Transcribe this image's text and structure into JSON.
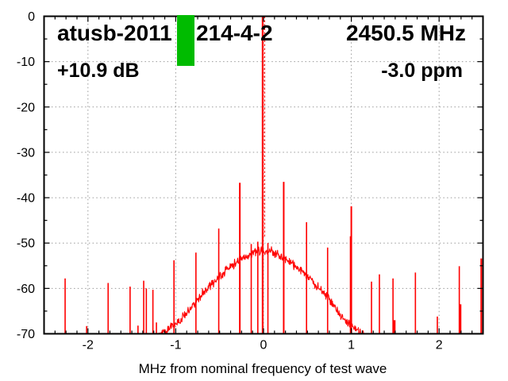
{
  "header": {
    "test_name_left": "atusb-2011",
    "test_name_right": "214-4-2",
    "frequency": "2450.5 MHz",
    "margin": "+10.9 dB",
    "offset_ppm": "-3.0 ppm"
  },
  "colors": {
    "trace": "#ff0000",
    "grid": "#9a9a9a",
    "axis": "#000000",
    "pass_bar": "#00bb00"
  },
  "chart_data": {
    "type": "line",
    "xlabel": "MHz from nominal frequency of test wave",
    "ylabel": "",
    "xlim": [
      -2.5,
      2.5
    ],
    "ylim": [
      -70,
      0
    ],
    "xticks": [
      -2,
      -1,
      0,
      1,
      2
    ],
    "yticks": [
      0,
      -10,
      -20,
      -30,
      -40,
      -50,
      -60,
      -70
    ],
    "x_minor_step": 0.125,
    "y_minor_step": 5,
    "grid": "dotted",
    "carrier_spike": {
      "f_mhz": 0.0,
      "peak_db": 0.0
    },
    "pass_bar": {
      "f_start": -1.0,
      "f_end": -0.8,
      "db_top": 0,
      "db_bottom": -10.9
    },
    "spurs": [
      {
        "f": -2.26,
        "db": -57.8
      },
      {
        "f": -2.015,
        "db": -68.3
      },
      {
        "f": -1.77,
        "db": -58.8
      },
      {
        "f": -1.52,
        "db": -59.6
      },
      {
        "f": -1.43,
        "db": -68.2
      },
      {
        "f": -1.365,
        "db": -58.3
      },
      {
        "f": -1.335,
        "db": -60.0
      },
      {
        "f": -1.26,
        "db": -60.3
      },
      {
        "f": -1.22,
        "db": -67.5
      },
      {
        "f": -1.02,
        "db": -53.8
      },
      {
        "f": -0.77,
        "db": -52.1
      },
      {
        "f": -0.51,
        "db": -46.8
      },
      {
        "f": -0.27,
        "db": -36.7,
        "w": 2
      },
      {
        "f": -0.14,
        "db": -50.2
      },
      {
        "f": -0.065,
        "db": -49.7
      },
      {
        "f": 0.05,
        "db": -50.0
      },
      {
        "f": 0.23,
        "db": -36.5,
        "w": 2
      },
      {
        "f": 0.49,
        "db": -45.4
      },
      {
        "f": 0.73,
        "db": -51.0
      },
      {
        "f": 0.99,
        "db": -48.5
      },
      {
        "f": 1.0,
        "db": -41.9,
        "w": 2
      },
      {
        "f": 1.23,
        "db": -58.5
      },
      {
        "f": 1.32,
        "db": -56.9
      },
      {
        "f": 1.475,
        "db": -57.8
      },
      {
        "f": 1.49,
        "db": -67.0,
        "w": 3
      },
      {
        "f": 1.73,
        "db": -56.5
      },
      {
        "f": 1.98,
        "db": -66.2
      },
      {
        "f": 2.23,
        "db": -55.1
      },
      {
        "f": 2.24,
        "db": -63.5,
        "w": 3
      },
      {
        "f": 2.48,
        "db": -53.4,
        "w": 2
      }
    ],
    "noise_hump": [
      [
        -1.33,
        -72.5
      ],
      [
        -1.2,
        -70.5
      ],
      [
        -1.1,
        -69.0
      ],
      [
        -1.0,
        -67.8
      ],
      [
        -0.9,
        -66.0
      ],
      [
        -0.8,
        -63.6
      ],
      [
        -0.7,
        -61.2
      ],
      [
        -0.6,
        -59.2
      ],
      [
        -0.5,
        -57.4
      ],
      [
        -0.4,
        -55.6
      ],
      [
        -0.3,
        -54.1
      ],
      [
        -0.2,
        -52.9
      ],
      [
        -0.12,
        -52.1
      ],
      [
        -0.05,
        -51.7
      ],
      [
        0.0,
        -51.6
      ],
      [
        0.05,
        -51.7
      ],
      [
        0.12,
        -52.1
      ],
      [
        0.2,
        -52.9
      ],
      [
        0.3,
        -54.1
      ],
      [
        0.4,
        -55.7
      ],
      [
        0.5,
        -57.5
      ],
      [
        0.6,
        -59.3
      ],
      [
        0.7,
        -61.3
      ],
      [
        0.8,
        -63.8
      ],
      [
        0.9,
        -66.3
      ],
      [
        1.0,
        -68.2
      ],
      [
        1.1,
        -69.7
      ],
      [
        1.2,
        -71.0
      ],
      [
        1.33,
        -72.5
      ]
    ],
    "noise_band_db": 2.3
  }
}
